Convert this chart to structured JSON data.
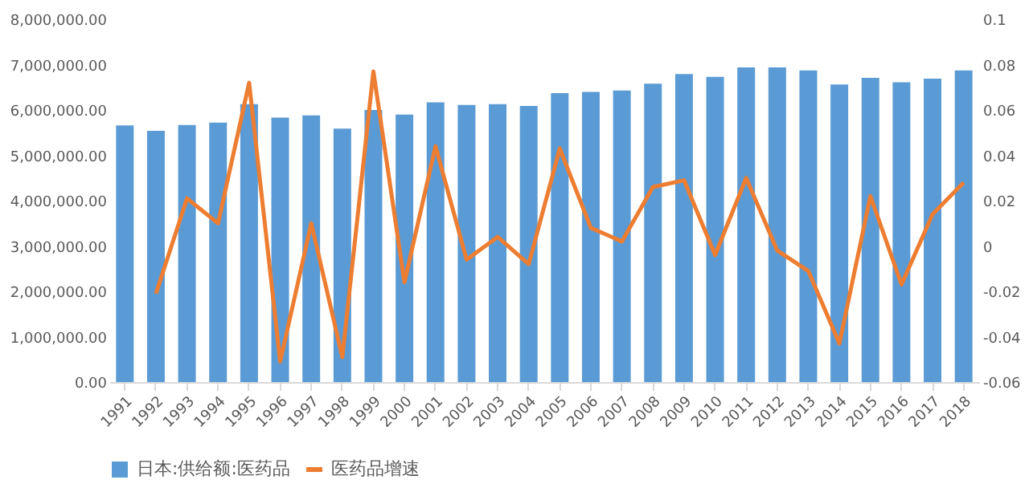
{
  "chart_data": {
    "type": "bar",
    "categories": [
      "1991",
      "1992",
      "1993",
      "1994",
      "1995",
      "1996",
      "1997",
      "1998",
      "1999",
      "2000",
      "2001",
      "2002",
      "2003",
      "2004",
      "2005",
      "2006",
      "2007",
      "2008",
      "2009",
      "2010",
      "2011",
      "2012",
      "2013",
      "2014",
      "2015",
      "2016",
      "2017",
      "2018"
    ],
    "series": [
      {
        "name": "日本:供给额:医药品",
        "color": "#5b9bd5",
        "values": [
          5660000,
          5540000,
          5670000,
          5720000,
          6130000,
          5830000,
          5880000,
          5590000,
          6000000,
          5900000,
          6170000,
          6110000,
          6130000,
          6090000,
          6370000,
          6400000,
          6430000,
          6580000,
          6790000,
          6730000,
          6940000,
          6940000,
          6870000,
          6560000,
          6710000,
          6610000,
          6690000,
          6870000
        ]
      },
      {
        "name": "医药品增速",
        "color": "#ed7d31",
        "type": "line",
        "axis": "y2",
        "values": [
          null,
          -0.021,
          0.021,
          0.01,
          0.072,
          -0.051,
          0.01,
          -0.049,
          0.077,
          -0.016,
          0.044,
          -0.006,
          0.004,
          -0.008,
          0.043,
          0.008,
          0.002,
          0.026,
          0.029,
          -0.004,
          0.03,
          -0.002,
          -0.011,
          -0.043,
          0.022,
          -0.017,
          0.014,
          0.028
        ]
      }
    ],
    "ylim": [
      0,
      8000000
    ],
    "yticks": [
      {
        "value": 0,
        "label": "0.00"
      },
      {
        "value": 1000000,
        "label": "1,000,000.00"
      },
      {
        "value": 2000000,
        "label": "2,000,000.00"
      },
      {
        "value": 3000000,
        "label": "3,000,000.00"
      },
      {
        "value": 4000000,
        "label": "4,000,000.00"
      },
      {
        "value": 5000000,
        "label": "5,000,000.00"
      },
      {
        "value": 6000000,
        "label": "6,000,000.00"
      },
      {
        "value": 7000000,
        "label": "7,000,000.00"
      },
      {
        "value": 8000000,
        "label": "8,000,000.00"
      }
    ],
    "y2lim": [
      -0.06,
      0.1
    ],
    "y2ticks": [
      -0.06,
      -0.04,
      -0.02,
      0,
      0.02,
      0.04,
      0.06,
      0.08,
      0.1
    ],
    "grid": false,
    "legend": "bottom",
    "marker": "none",
    "line_style": "solid"
  }
}
